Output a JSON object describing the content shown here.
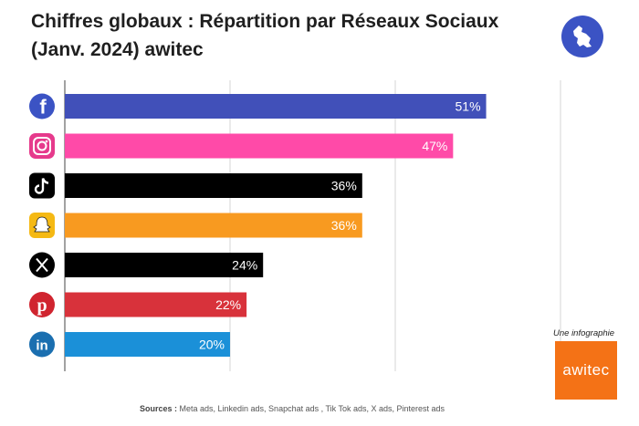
{
  "header": {
    "title_line1": "Chiffres globaux : Répartition par Réseaux Sociaux",
    "title_line2": "(Janv. 2024) awitec"
  },
  "footer": {
    "sources_label": "Sources :",
    "sources_text": "Meta ads, Linkedin ads, Snapchat ads , Tik Tok ads, X ads, Pinterest ads"
  },
  "badge": {
    "caption": "Une infographie",
    "brand": "awitec"
  },
  "colors": {
    "facebook": "#4150b9",
    "instagram": "#ff4aa8",
    "tiktok": "#000000",
    "snapchat": "#f89a20",
    "x": "#000000",
    "pinterest": "#d8323b",
    "linkedin": "#1b90d8",
    "icon_bg": "#3b53c4",
    "brand_orange": "#f47216"
  },
  "chart_data": {
    "type": "bar",
    "orientation": "horizontal",
    "title": "Chiffres globaux : Répartition par Réseaux Sociaux (Janv. 2024) awitec",
    "categories": [
      "Facebook",
      "Instagram",
      "TikTok",
      "Snapchat",
      "X",
      "Pinterest",
      "LinkedIn"
    ],
    "icons": [
      "facebook-icon",
      "instagram-icon",
      "tiktok-icon",
      "snapchat-icon",
      "x-icon",
      "pinterest-icon",
      "linkedin-icon"
    ],
    "values": [
      51,
      47,
      36,
      36,
      24,
      22,
      20
    ],
    "value_labels": [
      "51%",
      "47%",
      "36%",
      "36%",
      "24%",
      "22%",
      "20%"
    ],
    "bar_colors": [
      "#4150b9",
      "#ff4aa8",
      "#000000",
      "#f89a20",
      "#000000",
      "#d8323b",
      "#1b90d8"
    ],
    "xlim": [
      0,
      60
    ],
    "grid": true,
    "legend": "none"
  }
}
